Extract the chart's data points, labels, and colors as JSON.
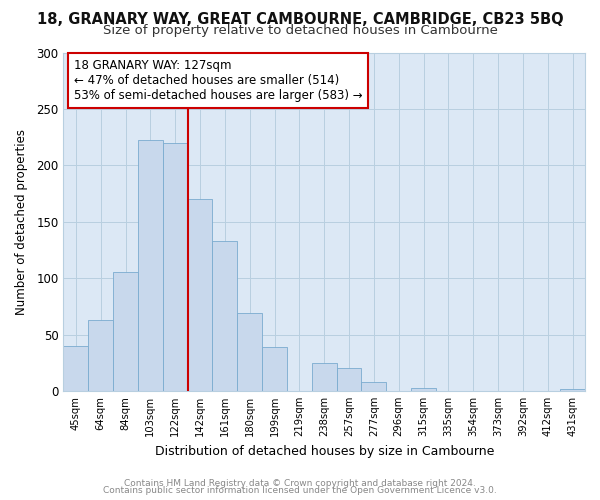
{
  "title1": "18, GRANARY WAY, GREAT CAMBOURNE, CAMBRIDGE, CB23 5BQ",
  "title2": "Size of property relative to detached houses in Cambourne",
  "xlabel": "Distribution of detached houses by size in Cambourne",
  "ylabel": "Number of detached properties",
  "bar_labels": [
    "45sqm",
    "64sqm",
    "84sqm",
    "103sqm",
    "122sqm",
    "142sqm",
    "161sqm",
    "180sqm",
    "199sqm",
    "219sqm",
    "238sqm",
    "257sqm",
    "277sqm",
    "296sqm",
    "315sqm",
    "335sqm",
    "354sqm",
    "373sqm",
    "392sqm",
    "412sqm",
    "431sqm"
  ],
  "bar_heights": [
    40,
    63,
    105,
    222,
    220,
    170,
    133,
    69,
    39,
    0,
    25,
    20,
    8,
    0,
    3,
    0,
    0,
    0,
    0,
    0,
    2
  ],
  "bar_color": "#c8d8ec",
  "bar_edge_color": "#7aabcf",
  "vline_color": "#cc0000",
  "vline_x": 4.5,
  "annotation_title": "18 GRANARY WAY: 127sqm",
  "annotation_line1": "← 47% of detached houses are smaller (514)",
  "annotation_line2": "53% of semi-detached houses are larger (583) →",
  "annotation_box_color": "#ffffff",
  "annotation_box_edge": "#cc0000",
  "ylim": [
    0,
    300
  ],
  "yticks": [
    0,
    50,
    100,
    150,
    200,
    250,
    300
  ],
  "footnote1": "Contains HM Land Registry data © Crown copyright and database right 2024.",
  "footnote2": "Contains public sector information licensed under the Open Government Licence v3.0.",
  "bg_color": "#ffffff",
  "plot_bg_color": "#dce8f5",
  "title_fontsize": 10.5,
  "subtitle_fontsize": 9.5,
  "grid_color": "#b8cfe0"
}
